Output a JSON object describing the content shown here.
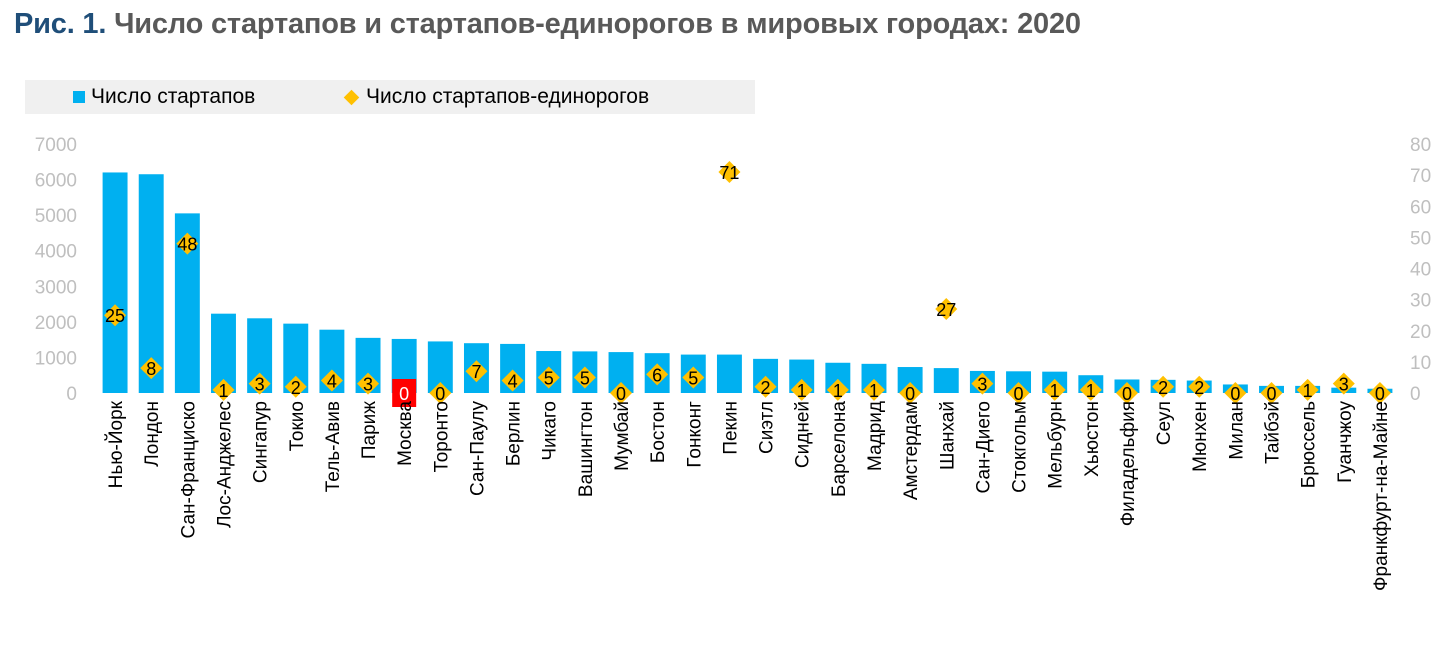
{
  "title": {
    "prefix": "Рис. 1.",
    "text": "Число стартапов и стартапов-единорогов в мировых городах: 2020"
  },
  "colors": {
    "bar": "#00b0f0",
    "bar_highlight": "#ff0000",
    "marker": "#ffc000",
    "axis_text": "#bfbfbf",
    "label_text": "#000000"
  },
  "legend": {
    "items": [
      {
        "label": "Число стартапов",
        "marker": "bar"
      },
      {
        "label": "Число стартапов-единорогов",
        "marker": "diamond"
      }
    ]
  },
  "chart_data": {
    "type": "bar",
    "legend_position": "top-left",
    "grid": false,
    "categories": [
      "Нью-Йорк",
      "Лондон",
      "Сан-Франциско",
      "Лос-Анджелес",
      "Сингапур",
      "Токио",
      "Тель-Авив",
      "Париж",
      "Москва",
      "Торонто",
      "Сан-Паулу",
      "Берлин",
      "Чикаго",
      "Вашингтон",
      "Мумбай",
      "Бостон",
      "Гонконг",
      "Пекин",
      "Сиэтл",
      "Сидней",
      "Барселона",
      "Мадрид",
      "Амстердам",
      "Шанхай",
      "Сан-Диего",
      "Стокгольм",
      "Мельбурн",
      "Хьюстон",
      "Филадельфия",
      "Сеул",
      "Мюнхен",
      "Милан",
      "Тайбэй",
      "Брюссель",
      "Гуанчжоу",
      "Франкфурт-на-Майне"
    ],
    "highlight_category": "Москва",
    "y_left": {
      "min": 0,
      "max": 7000,
      "ticks": [
        0,
        1000,
        2000,
        3000,
        4000,
        5000,
        6000,
        7000
      ]
    },
    "y_right": {
      "min": 0,
      "max": 80,
      "ticks": [
        0,
        10,
        20,
        30,
        40,
        50,
        60,
        70,
        80
      ]
    },
    "series": [
      {
        "name": "Число стартапов",
        "type": "bar",
        "axis": "left",
        "values": [
          6200,
          6150,
          5050,
          2230,
          2100,
          1950,
          1780,
          1550,
          1520,
          1450,
          1400,
          1380,
          1180,
          1170,
          1150,
          1120,
          1080,
          1080,
          960,
          940,
          850,
          820,
          730,
          700,
          620,
          610,
          600,
          500,
          380,
          370,
          350,
          240,
          200,
          200,
          150,
          120
        ]
      },
      {
        "name": "Число стартапов-единорогов",
        "type": "scatter",
        "marker": "diamond",
        "axis": "right",
        "values": [
          25,
          8,
          48,
          1,
          3,
          2,
          4,
          3,
          0,
          0,
          7,
          4,
          5,
          5,
          0,
          6,
          5,
          71,
          2,
          1,
          1,
          1,
          0,
          27,
          3,
          0,
          1,
          1,
          0,
          2,
          2,
          0,
          0,
          1,
          3,
          0
        ]
      }
    ]
  }
}
